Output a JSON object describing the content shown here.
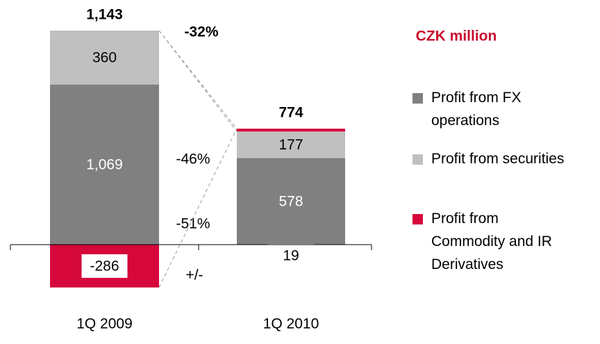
{
  "chart_data": {
    "type": "stacked_bar",
    "title": "CZK million",
    "categories": [
      "1Q 2009",
      "1Q 2010"
    ],
    "series": [
      {
        "name": "Profit from FX operations",
        "color": "#808080",
        "values": [
          1069,
          578
        ],
        "value_labels": [
          "1,069",
          "578"
        ]
      },
      {
        "name": "Profit from securities",
        "color": "#c0c0c0",
        "values": [
          360,
          177
        ]
      },
      {
        "name": "Profit from Commodity and IR Derivatives",
        "color": "#d6083b",
        "values": [
          -286,
          19
        ]
      }
    ],
    "totals": [
      {
        "value": 1143,
        "label": "1,143"
      },
      774
    ],
    "annotations": [
      "-32%",
      "-46%",
      "-51%",
      "+/-"
    ]
  }
}
